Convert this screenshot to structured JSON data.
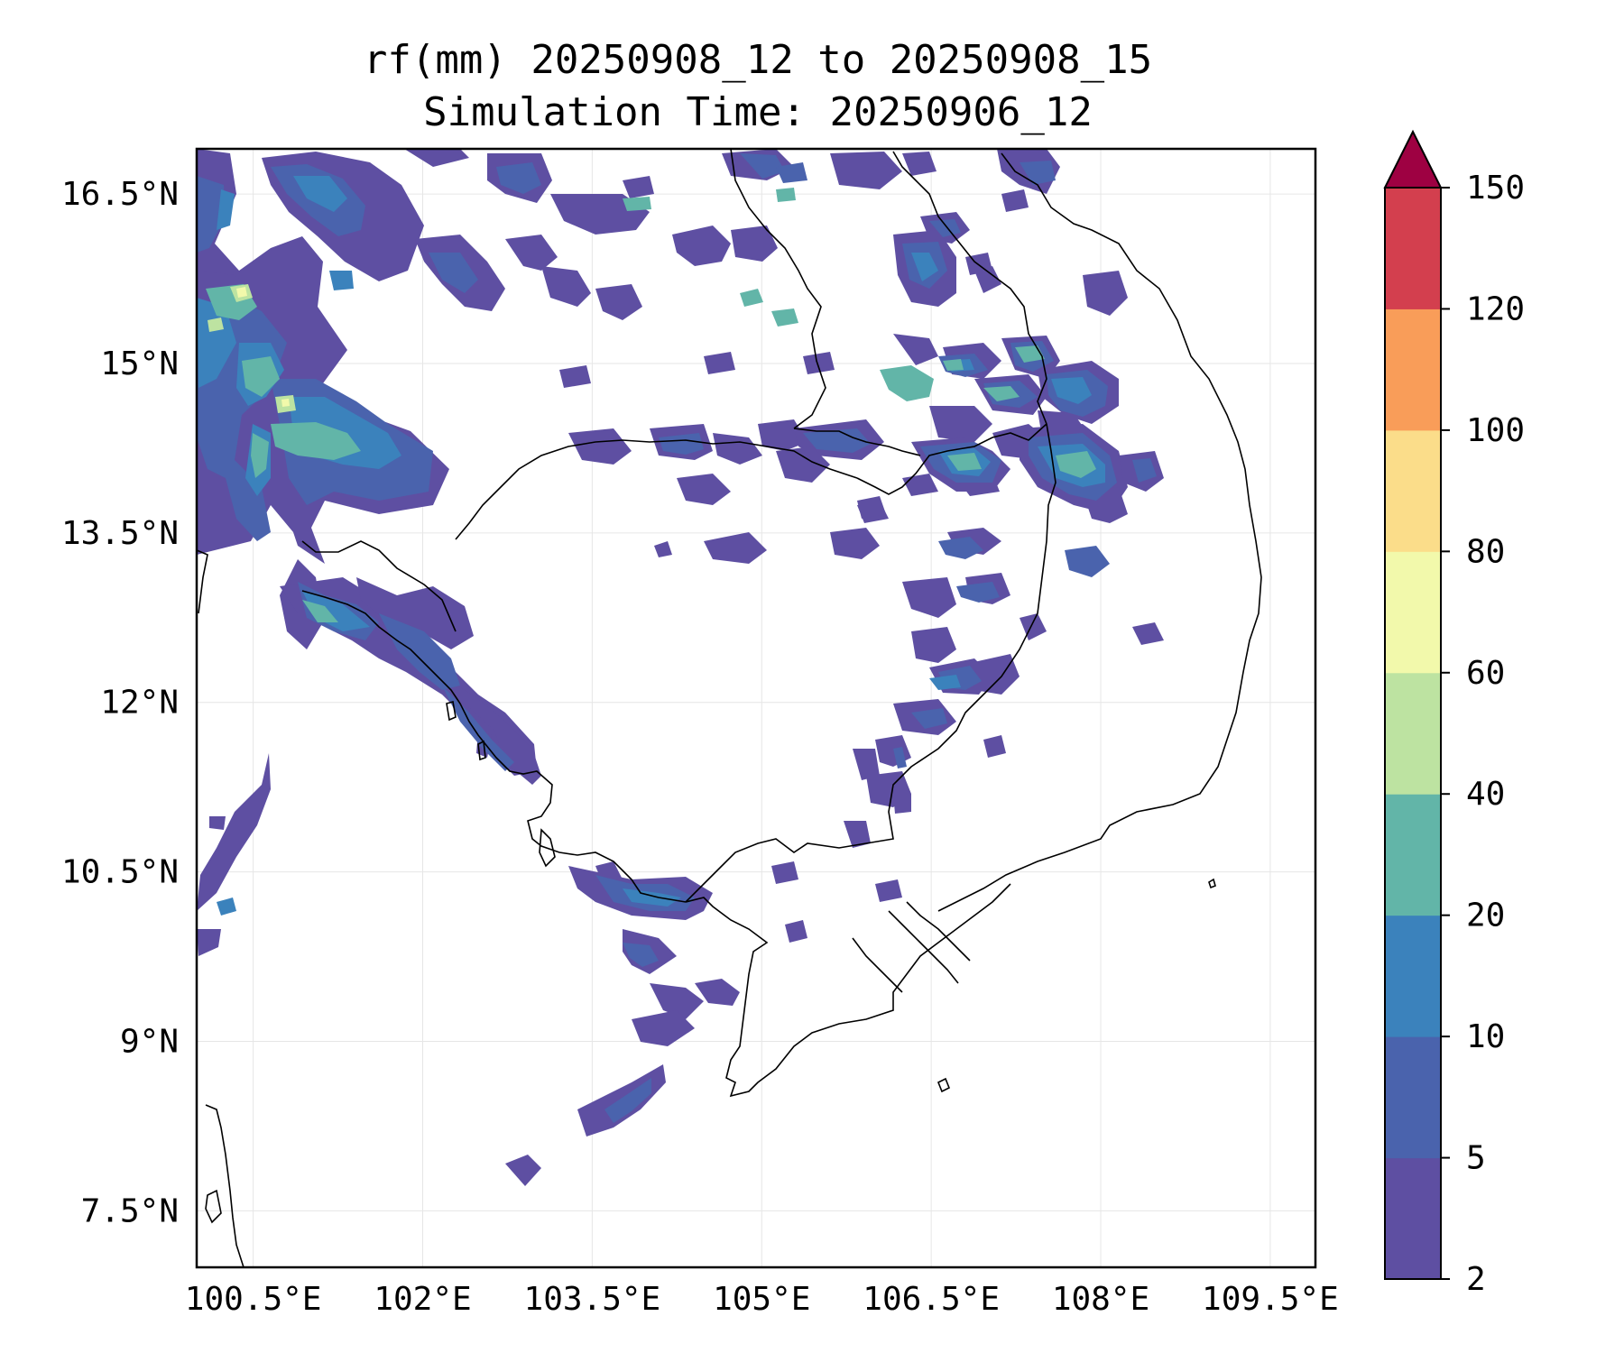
{
  "title": {
    "line1": "rf(mm) 20250908_12 to 20250908_15",
    "line2": "Simulation Time: 20250906_12"
  },
  "map": {
    "lon_range": [
      100.0,
      109.9
    ],
    "lat_range": [
      7.0,
      16.9
    ],
    "lon_ticks": [
      {
        "value": 100.5,
        "label": "100.5°E"
      },
      {
        "value": 102.0,
        "label": "102°E"
      },
      {
        "value": 103.5,
        "label": "103.5°E"
      },
      {
        "value": 105.0,
        "label": "105°E"
      },
      {
        "value": 106.5,
        "label": "106.5°E"
      },
      {
        "value": 108.0,
        "label": "108°E"
      },
      {
        "value": 109.5,
        "label": "109.5°E"
      }
    ],
    "lat_ticks": [
      {
        "value": 16.5,
        "label": "16.5°N"
      },
      {
        "value": 15.0,
        "label": "15°N"
      },
      {
        "value": 13.5,
        "label": "13.5°N"
      },
      {
        "value": 12.0,
        "label": "12°N"
      },
      {
        "value": 10.5,
        "label": "10.5°N"
      },
      {
        "value": 9.0,
        "label": "9°N"
      },
      {
        "value": 7.5,
        "label": "7.5°N"
      }
    ],
    "grid": true
  },
  "colorbar": {
    "levels": [
      2,
      5,
      10,
      20,
      40,
      60,
      80,
      100,
      120,
      150
    ],
    "labels": [
      "2",
      "5",
      "10",
      "20",
      "40",
      "60",
      "80",
      "100",
      "120",
      "150"
    ],
    "colors": [
      "#5e4fa2",
      "#4a63ad",
      "#3b82bc",
      "#62b5a8",
      "#bde3a1",
      "#f2f9ab",
      "#fbdd8a",
      "#f99d59",
      "#d33f4e"
    ],
    "extend_color": "#9e0142",
    "extend": "max"
  }
}
